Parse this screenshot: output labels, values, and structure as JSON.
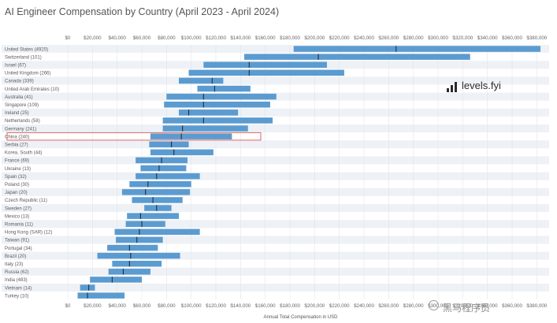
{
  "chart_data": {
    "type": "bar",
    "subtype": "range-with-median",
    "title": "AI Engineer Compensation by Country (April 2023 - April 2024)",
    "xlabel": "Annual Total Compensation in USD",
    "ylabel": "",
    "xlim": [
      0,
      390000
    ],
    "x_ticks": [
      0,
      20000,
      40000,
      60000,
      80000,
      100000,
      120000,
      140000,
      160000,
      180000,
      200000,
      220000,
      240000,
      260000,
      280000,
      300000,
      320000,
      340000,
      360000,
      380000
    ],
    "x_tick_labels": [
      "$0",
      "$20,000",
      "$40,000",
      "$60,000",
      "$80,000",
      "$100,000",
      "$120,000",
      "$140,000",
      "$160,000",
      "$180,000",
      "$200,000",
      "$220,000",
      "$240,000",
      "$260,000",
      "$280,000",
      "$300,000",
      "$320,000",
      "$340,000",
      "$360,000",
      "$380,000"
    ],
    "x_axis_positions": [
      "top",
      "bottom"
    ],
    "grid": "alternating-row-bands",
    "bar_color": "#5b9bd0",
    "median_color": "#1f2f44",
    "highlight_color": "#e06666",
    "highlighted_category": "China (240)",
    "categories": [
      "United States (4920)",
      "Switzerland (101)",
      "Israel (67)",
      "United Kingdom (266)",
      "Canada (339)",
      "United Arab Emirates (10)",
      "Australia (41)",
      "Singapore (109)",
      "Ireland (25)",
      "Netherlands (58)",
      "Germany (241)",
      "China (240)",
      "Serbia (27)",
      "Korea, South (44)",
      "France (69)",
      "Ukraine (13)",
      "Spain (32)",
      "Poland (30)",
      "Japan (20)",
      "Czech Republic (11)",
      "Sweden (27)",
      "Mexico (13)",
      "Romania (11)",
      "Hong Kong (SAR) (12)",
      "Taiwan (91)",
      "Portugal (34)",
      "Brazil (20)",
      "Italy (23)",
      "Russia (62)",
      "India (483)",
      "Vietnam (14)",
      "Turkey (10)"
    ],
    "low": [
      183000,
      143000,
      110000,
      98000,
      90000,
      105000,
      80000,
      78000,
      90000,
      77000,
      77000,
      67000,
      66000,
      67000,
      55000,
      59000,
      55000,
      50000,
      44000,
      52000,
      62000,
      48000,
      47000,
      38000,
      39000,
      32000,
      24000,
      36000,
      33000,
      18000,
      10000,
      8000
    ],
    "median": [
      266000,
      203000,
      147000,
      147000,
      117000,
      119000,
      110000,
      110000,
      98000,
      110000,
      93000,
      92000,
      84000,
      86000,
      76000,
      74000,
      72000,
      65000,
      63000,
      69000,
      72000,
      59000,
      60000,
      58000,
      56000,
      50000,
      51000,
      50000,
      45000,
      36000,
      17000,
      16000
    ],
    "high": [
      383000,
      326000,
      210000,
      224000,
      126000,
      148000,
      169000,
      164000,
      138000,
      166000,
      146000,
      133000,
      98000,
      118000,
      97000,
      96000,
      107000,
      100000,
      99000,
      93000,
      84000,
      90000,
      79000,
      107000,
      77000,
      73000,
      91000,
      76000,
      67000,
      60000,
      22000,
      46000
    ]
  },
  "watermark": {
    "brand": "levels.fyi",
    "source": "黑马程序员"
  }
}
